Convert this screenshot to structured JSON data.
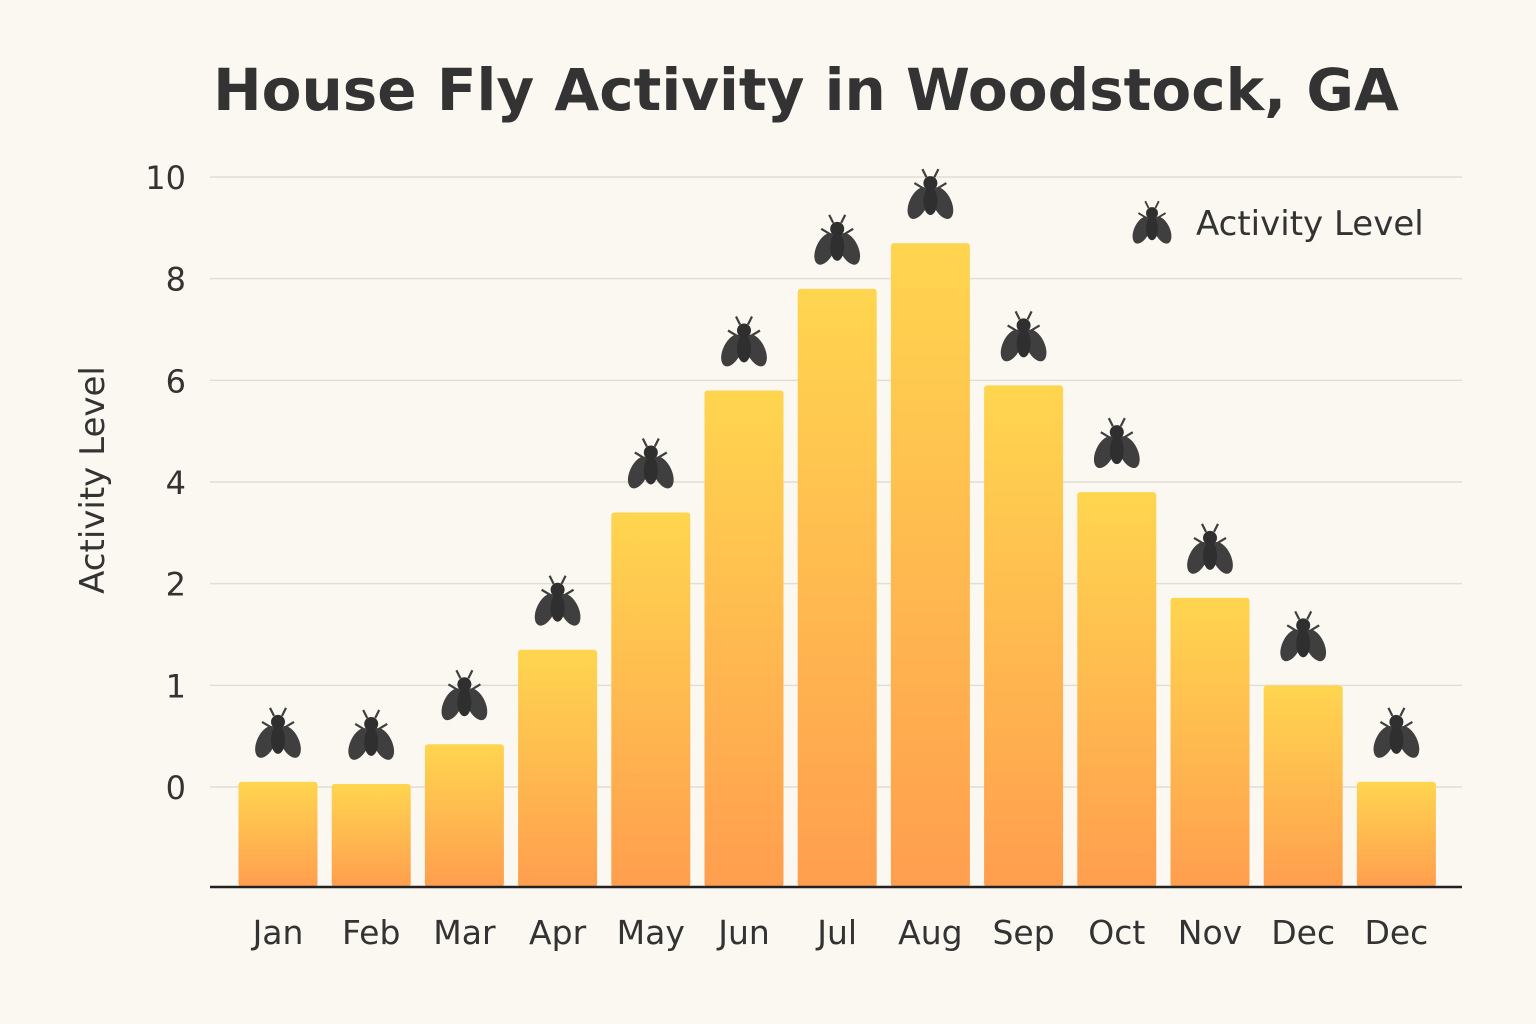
{
  "chart_data": {
    "type": "bar",
    "title": "House Fly Activity in Woodstock, GA",
    "xlabel": "",
    "ylabel": "Activity Level",
    "y_ticks": [
      0,
      1,
      2,
      4,
      6,
      8,
      10
    ],
    "y_tick_labels": [
      "0",
      "1",
      "2",
      "4",
      "6",
      "8",
      "10"
    ],
    "ylim": [
      0,
      10
    ],
    "grid": true,
    "categories": [
      "Jan",
      "Feb",
      "Mar",
      "Apr",
      "May",
      "Jun",
      "Jul",
      "Aug",
      "Sep",
      "Oct",
      "Nov",
      "Dec",
      "Dec"
    ],
    "values": [
      0.05,
      0.03,
      0.42,
      1.35,
      3.4,
      5.8,
      7.8,
      8.7,
      5.9,
      3.8,
      1.86,
      1.0,
      0.05
    ],
    "legend": {
      "label": "Activity Level",
      "icon": "fly-icon",
      "position": "top-right"
    },
    "marker_icon": "fly-icon",
    "colors": {
      "bar_top": "#FFD54F",
      "bar_bottom": "#FF9E4F",
      "icon": "#3F3F3F",
      "background": "#FBF8F2",
      "grid": "#E2DED6",
      "axis": "#222222"
    }
  }
}
